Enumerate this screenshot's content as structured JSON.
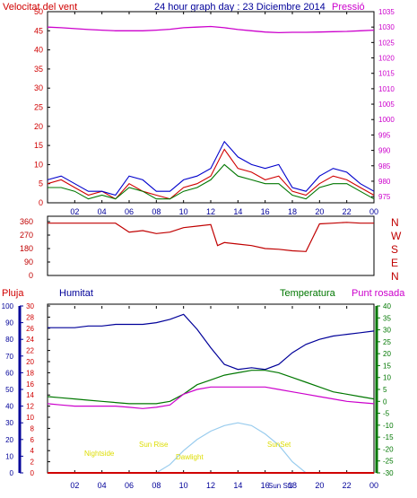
{
  "header": {
    "left_label": "Velocitat del vent",
    "title": "24 hour graph day : 23 Diciembre 2014",
    "right_label": "Pressió"
  },
  "panel2": {
    "compass": [
      "N",
      "W",
      "S",
      "E",
      "N"
    ]
  },
  "panel3": {
    "labels": {
      "rain": "Pluja",
      "humidity": "Humitat",
      "temperature": "Temperatura",
      "dewpoint": "Punt rosada"
    },
    "sun_labels": {
      "nightside": "Nightside",
      "sunrise": "Sun Rise",
      "daylight": "Dawlight",
      "sunset": "SunSet",
      "sunstill": "Sun Stil"
    }
  },
  "colors": {
    "wind": "#d00000",
    "gust": "#0000cc",
    "avg_wind": "#007700",
    "pressure": "#cc00cc",
    "direction": "#c00000",
    "humidity": "#000099",
    "temperature": "#007700",
    "dewpoint": "#cc00cc",
    "sun": "#99ccee",
    "sun_labels": "#dddd00"
  },
  "chart_data": [
    {
      "type": "line",
      "title": "24 hour graph day : 23 Diciembre 2014",
      "x_ticks": [
        "02",
        "04",
        "06",
        "08",
        "10",
        "12",
        "14",
        "16",
        "18",
        "20",
        "22",
        "00"
      ],
      "y_left": {
        "label": "Velocitat del vent",
        "ticks": [
          0,
          5,
          10,
          15,
          20,
          25,
          30,
          35,
          40,
          45,
          50
        ],
        "range": [
          0,
          50
        ]
      },
      "y_right": {
        "label": "Pressió",
        "ticks": [
          975,
          980,
          985,
          990,
          995,
          1000,
          1005,
          1010,
          1015,
          1020,
          1025,
          1030,
          1035
        ],
        "range": [
          973,
          1035
        ]
      },
      "x": [
        0,
        1,
        2,
        3,
        4,
        5,
        6,
        7,
        8,
        9,
        10,
        11,
        12,
        13,
        14,
        15,
        16,
        17,
        18,
        19,
        20,
        21,
        22,
        23,
        24
      ],
      "series": [
        {
          "name": "Pressió",
          "axis": "right",
          "values": [
            1030,
            1029.8,
            1029.5,
            1029.2,
            1029,
            1028.8,
            1028.8,
            1028.8,
            1029,
            1029.3,
            1029.8,
            1030,
            1030.2,
            1029.8,
            1029.2,
            1028.8,
            1028.4,
            1028.2,
            1028.3,
            1028.3,
            1028.4,
            1028.5,
            1028.6,
            1028.8,
            1029
          ]
        },
        {
          "name": "Vent",
          "axis": "left",
          "values": [
            5,
            6,
            4,
            2,
            3,
            1,
            5,
            3,
            2,
            1,
            4,
            5,
            7,
            14,
            9,
            8,
            6,
            7,
            3,
            2,
            5,
            7,
            6,
            4,
            2
          ]
        },
        {
          "name": "Ratxa",
          "axis": "left",
          "values": [
            6,
            7,
            5,
            3,
            3,
            2,
            7,
            6,
            3,
            3,
            6,
            7,
            9,
            16,
            12,
            10,
            9,
            10,
            4,
            3,
            7,
            9,
            8,
            5,
            3
          ]
        },
        {
          "name": "Mitjana",
          "axis": "left",
          "values": [
            4,
            4,
            3,
            1,
            2,
            1,
            4,
            3,
            1,
            1,
            3,
            4,
            6,
            10,
            7,
            6,
            5,
            5,
            2,
            1,
            4,
            5,
            5,
            3,
            1
          ]
        }
      ]
    },
    {
      "type": "line",
      "y_left": {
        "ticks": [
          0,
          90,
          180,
          270,
          360
        ],
        "range": [
          0,
          360
        ]
      },
      "x": [
        0,
        1,
        2,
        3,
        4,
        5,
        6,
        7,
        8,
        9,
        10,
        11,
        12,
        12.5,
        13,
        14,
        15,
        16,
        17,
        18,
        19,
        20,
        21,
        22,
        23,
        24
      ],
      "series": [
        {
          "name": "Direcció",
          "values": [
            350,
            350,
            350,
            350,
            350,
            350,
            290,
            300,
            280,
            290,
            320,
            330,
            340,
            200,
            220,
            210,
            200,
            180,
            175,
            165,
            160,
            345,
            350,
            355,
            350,
            350
          ]
        }
      ]
    },
    {
      "type": "line",
      "y_rain": {
        "label": "Pluja",
        "ticks": [
          0,
          2,
          4,
          6,
          8,
          10,
          12,
          14,
          16,
          18,
          20,
          22,
          24,
          26,
          28,
          30
        ],
        "range": [
          0,
          30
        ]
      },
      "y_humidity": {
        "label": "Humitat",
        "ticks": [
          0,
          10,
          20,
          30,
          40,
          50,
          60,
          70,
          80,
          90,
          100
        ],
        "range": [
          0,
          100
        ]
      },
      "y_temp": {
        "label": "Temperatura",
        "ticks": [
          -30,
          -25,
          -20,
          -15,
          -10,
          -5,
          0,
          5,
          10,
          15,
          20,
          25,
          30,
          35,
          40
        ],
        "range": [
          -30,
          40
        ]
      },
      "x": [
        0,
        1,
        2,
        3,
        4,
        5,
        6,
        7,
        8,
        9,
        10,
        11,
        12,
        13,
        14,
        15,
        16,
        17,
        18,
        19,
        20,
        21,
        22,
        23,
        24
      ],
      "series": [
        {
          "name": "Humitat",
          "axis": "humidity",
          "values": [
            87,
            87,
            87,
            88,
            88,
            89,
            89,
            89,
            90,
            92,
            95,
            86,
            75,
            65,
            62,
            63,
            62,
            65,
            72,
            77,
            80,
            82,
            83,
            84,
            85
          ]
        },
        {
          "name": "Temperatura",
          "axis": "temp",
          "values": [
            2,
            1.5,
            1,
            0.5,
            0,
            -0.5,
            -1,
            -1,
            -1,
            0,
            3,
            7,
            9,
            11,
            12,
            13,
            13,
            12,
            10,
            8,
            6,
            4,
            3,
            2,
            1
          ]
        },
        {
          "name": "Punt rosada",
          "axis": "temp",
          "values": [
            -1,
            -1.5,
            -2,
            -2,
            -2,
            -2,
            -2.5,
            -3,
            -2.5,
            -1.5,
            3,
            5,
            6,
            6,
            6,
            6,
            6,
            5,
            4,
            3,
            2,
            1,
            0,
            -0.5,
            -1
          ]
        },
        {
          "name": "Sol",
          "axis": "rain",
          "values": [
            0,
            0,
            0,
            0,
            0,
            0,
            0,
            0,
            0,
            1.5,
            4,
            6,
            7.5,
            8.5,
            9,
            8.5,
            7,
            5,
            2,
            0,
            0,
            0,
            0,
            0,
            0
          ]
        },
        {
          "name": "Pluja",
          "axis": "rain",
          "values": [
            0,
            0,
            0,
            0,
            0,
            0,
            0,
            0,
            0,
            0,
            0,
            0,
            0,
            0,
            0,
            0,
            0,
            0,
            0,
            0,
            0,
            0,
            0,
            0,
            0
          ]
        }
      ]
    }
  ]
}
